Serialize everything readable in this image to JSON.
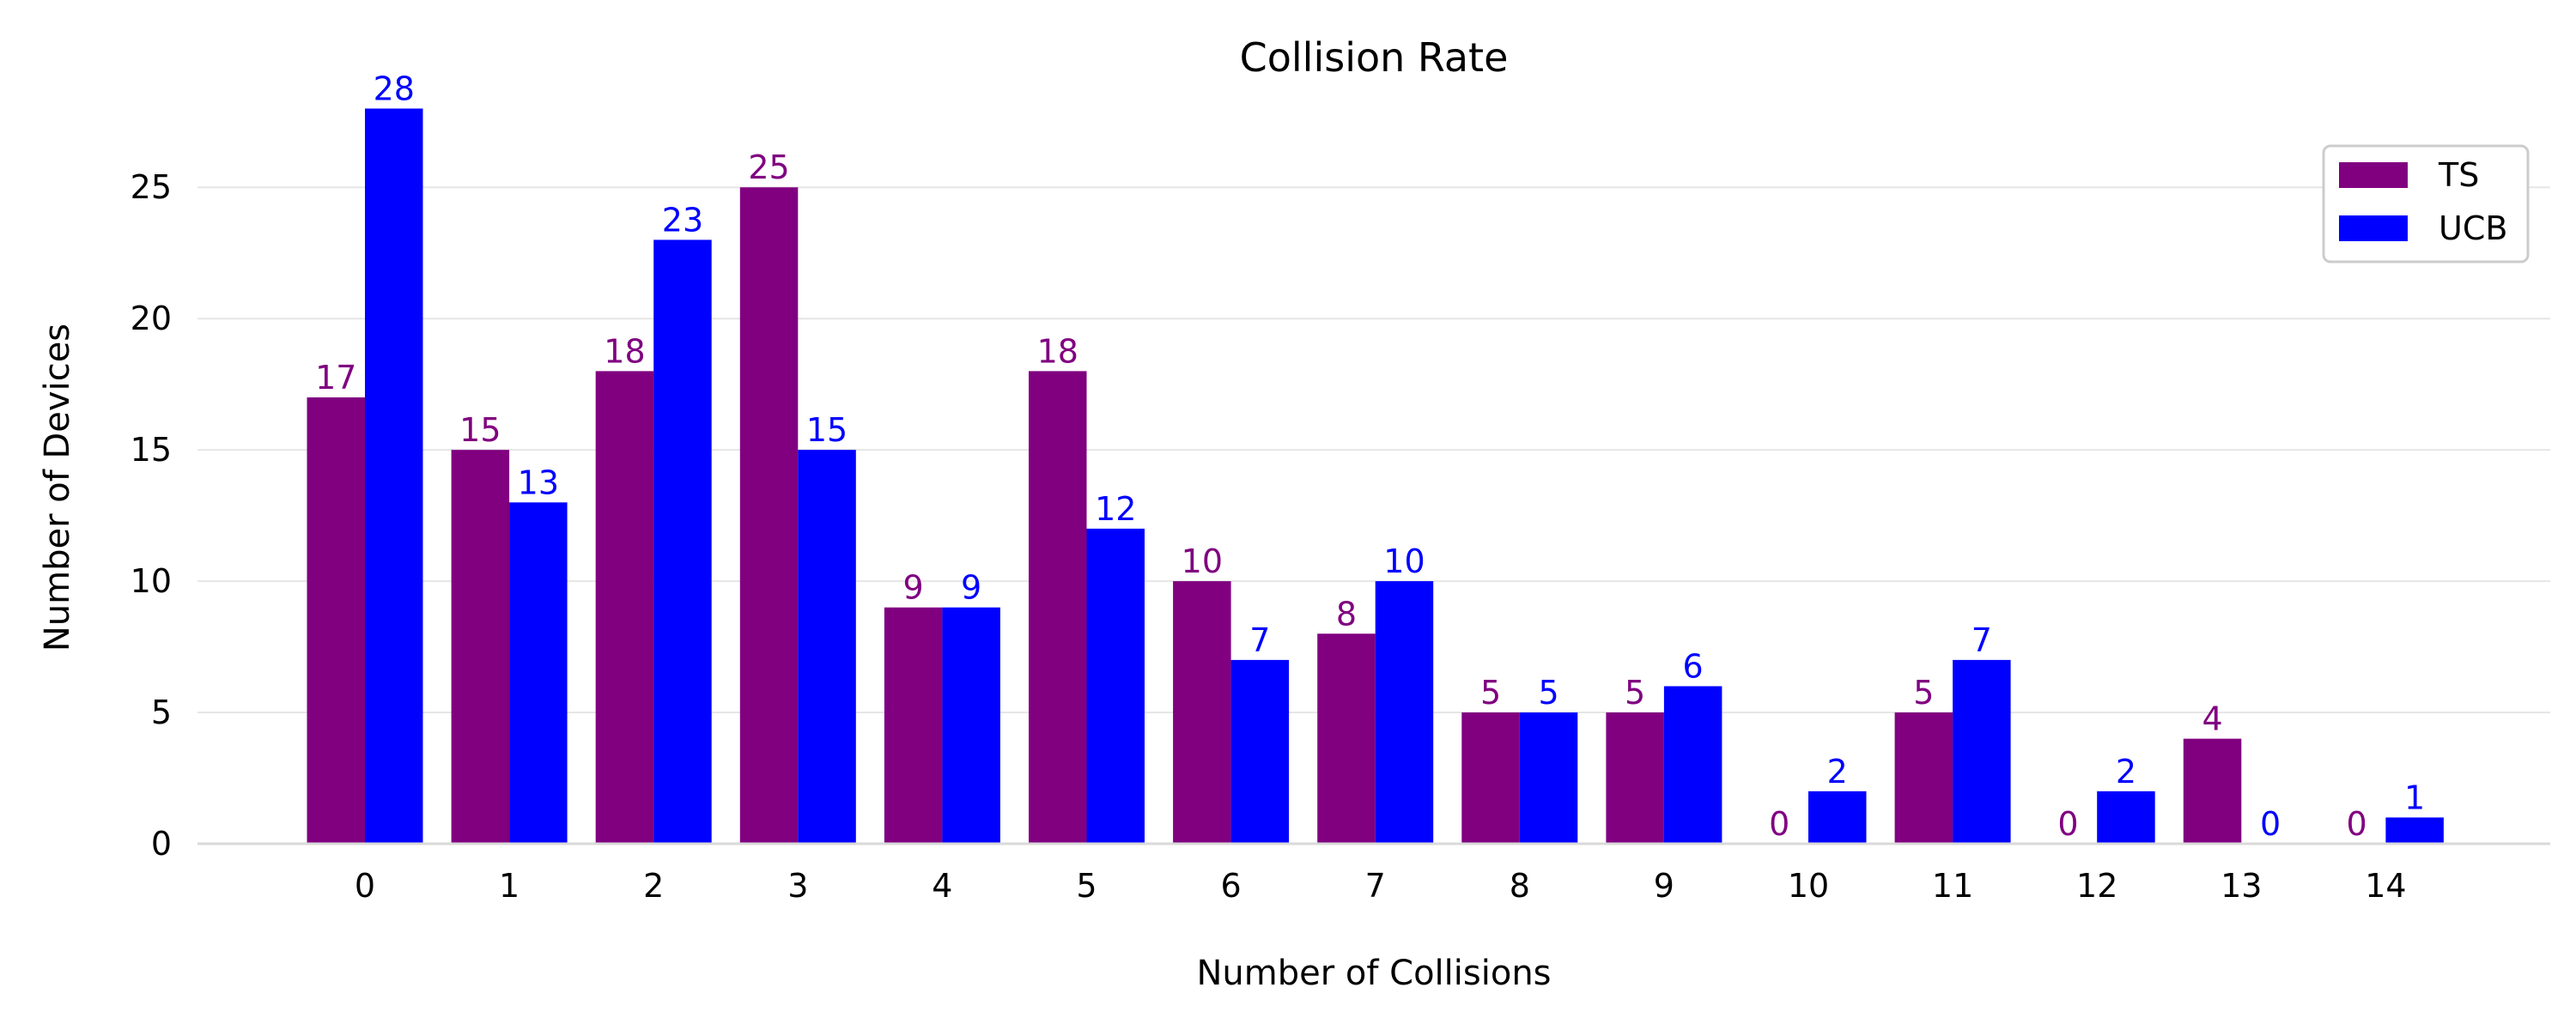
{
  "chart_data": {
    "type": "bar",
    "title": "Collision Rate",
    "xlabel": "Number of Collisions",
    "ylabel": "Number of Devices",
    "categories": [
      "0",
      "1",
      "2",
      "3",
      "4",
      "5",
      "6",
      "7",
      "8",
      "9",
      "10",
      "11",
      "12",
      "13",
      "14"
    ],
    "series": [
      {
        "name": "TS",
        "color": "#800080",
        "values": [
          17,
          15,
          18,
          25,
          9,
          18,
          10,
          8,
          5,
          5,
          0,
          5,
          0,
          4,
          0
        ]
      },
      {
        "name": "UCB",
        "color": "#0000ff",
        "values": [
          28,
          13,
          23,
          15,
          9,
          12,
          7,
          10,
          5,
          6,
          2,
          7,
          2,
          0,
          1
        ]
      }
    ],
    "yticks": [
      0,
      5,
      10,
      15,
      20,
      25
    ],
    "ylim": [
      0,
      30.5
    ],
    "grid": true,
    "legend_position": "top-right",
    "data_labels": true
  }
}
